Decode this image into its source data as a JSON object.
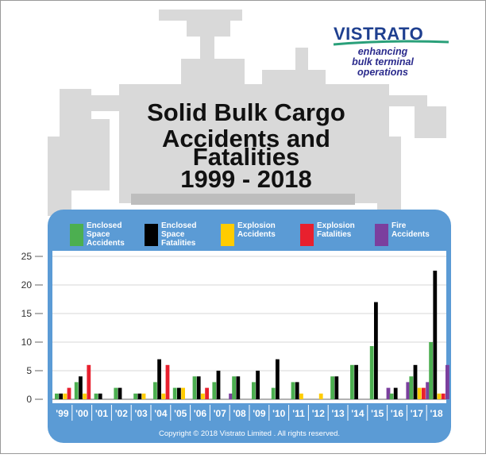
{
  "brand": {
    "name": "VISTRATO",
    "tagline": [
      "enhancing",
      "bulk terminal",
      "operations"
    ],
    "name_color": "#1e3f8f",
    "tagline_color": "#2a2a8c",
    "swoosh_color": "#2aa07a"
  },
  "title_lines": [
    "Solid Bulk Cargo",
    "Accidents and",
    "Fatalities",
    "1999 - 2018"
  ],
  "copyright": "Copyright © 2018 Vistrato Limited . All rights reserved.",
  "colors": {
    "panel_blue": "#5b9bd5",
    "ship_silhouette": "#d9d9d9",
    "ship_dark": "#bdbdbd",
    "axis": "#666666",
    "grid": "#b0b0b0"
  },
  "legend": [
    {
      "label_lines": [
        "Enclosed",
        "Space",
        "Accidents"
      ],
      "color": "#4caf50"
    },
    {
      "label_lines": [
        "Enclosed",
        "Space",
        "Fatalities"
      ],
      "color": "#000000"
    },
    {
      "label_lines": [
        "Explosion",
        "Accidents"
      ],
      "color": "#ffcc00"
    },
    {
      "label_lines": [
        "Explosion",
        "Fatalities"
      ],
      "color": "#e8202e"
    },
    {
      "label_lines": [
        "Fire",
        "Accidents"
      ],
      "color": "#7b3f9e"
    }
  ],
  "chart_data": {
    "type": "bar",
    "categories": [
      "'99",
      "'00",
      "'01",
      "'02",
      "'03",
      "'04",
      "'05",
      "'06",
      "'07",
      "'08",
      "'09",
      "'10",
      "'11",
      "'12",
      "'13",
      "'14",
      "'15",
      "'16",
      "'17",
      "'18"
    ],
    "series": [
      {
        "name": "Enclosed Space Accidents",
        "color": "#4caf50",
        "values": [
          1,
          3,
          1,
          2,
          1,
          3,
          2,
          4,
          3,
          4,
          3,
          2,
          3,
          0,
          4,
          6,
          9.3,
          1,
          4,
          10
        ]
      },
      {
        "name": "Enclosed Space Fatalities",
        "color": "#000000",
        "values": [
          1,
          4,
          1,
          2,
          1,
          7,
          2,
          4,
          5,
          4,
          5,
          7,
          3,
          0,
          4,
          6,
          17,
          2,
          6,
          22.5
        ]
      },
      {
        "name": "Explosion Accidents",
        "color": "#ffcc00",
        "values": [
          1,
          1,
          0,
          0,
          1,
          1,
          2,
          1,
          0,
          0,
          0,
          0,
          1,
          1,
          0,
          0,
          0,
          0,
          2,
          1
        ]
      },
      {
        "name": "Explosion Fatalities",
        "color": "#e8202e",
        "values": [
          2,
          6,
          0,
          0,
          0,
          6,
          0,
          2,
          0,
          0,
          0,
          0,
          0,
          0,
          0,
          0,
          0,
          0,
          2,
          1
        ]
      },
      {
        "name": "Fire Accidents",
        "color": "#7b3f9e",
        "values": [
          0,
          0,
          0,
          0,
          0,
          0,
          0,
          0,
          1,
          0,
          0,
          0,
          0,
          0,
          0,
          0,
          2,
          3,
          3,
          6
        ]
      }
    ],
    "y_ticks": [
      "0",
      "5",
      "10",
      "15",
      "20",
      "25"
    ],
    "ylim": [
      0,
      25
    ],
    "grid": "horizontal",
    "legend_position": "top"
  }
}
